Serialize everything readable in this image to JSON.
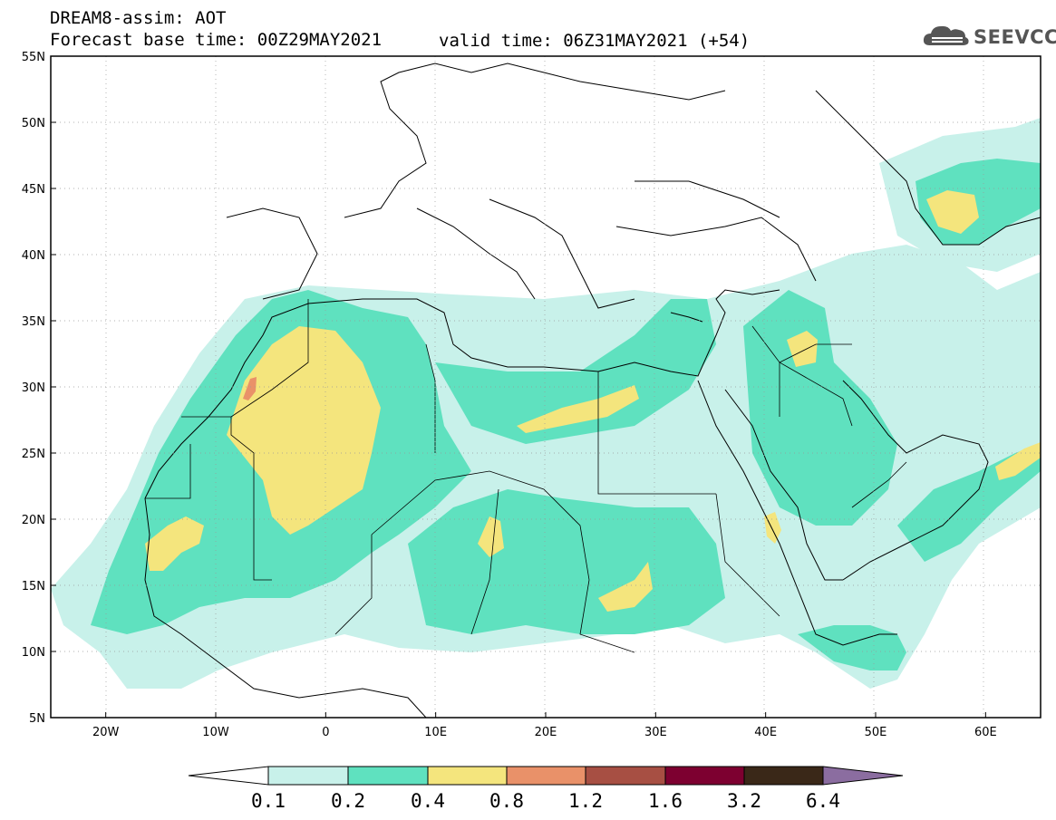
{
  "header": {
    "title": "DREAM8-assim: AOT",
    "base_time": "Forecast base time: 00Z29MAY2021",
    "valid_time": "valid time: 06Z31MAY2021 (+54)"
  },
  "logo": {
    "text": "SEEVCCC",
    "icon": "cloud-icon"
  },
  "axes": {
    "lat_labels": [
      "55N",
      "50N",
      "45N",
      "40N",
      "35N",
      "30N",
      "25N",
      "20N",
      "15N",
      "10N",
      "5N"
    ],
    "lon_labels": [
      "20W",
      "10W",
      "0",
      "10E",
      "20E",
      "30E",
      "40E",
      "50E",
      "60E"
    ],
    "lon_range": [
      -25,
      65
    ],
    "lat_range": [
      5,
      55
    ]
  },
  "colorbar": {
    "labels": [
      "0.1",
      "0.2",
      "0.4",
      "0.8",
      "1.2",
      "1.6",
      "3.2",
      "6.4"
    ],
    "colors": [
      "#ffffff",
      "#c8f1ea",
      "#5fe1bf",
      "#f4e57d",
      "#e99169",
      "#a74f43",
      "#7d0030",
      "#3a2818",
      "#8b6da0"
    ]
  }
}
